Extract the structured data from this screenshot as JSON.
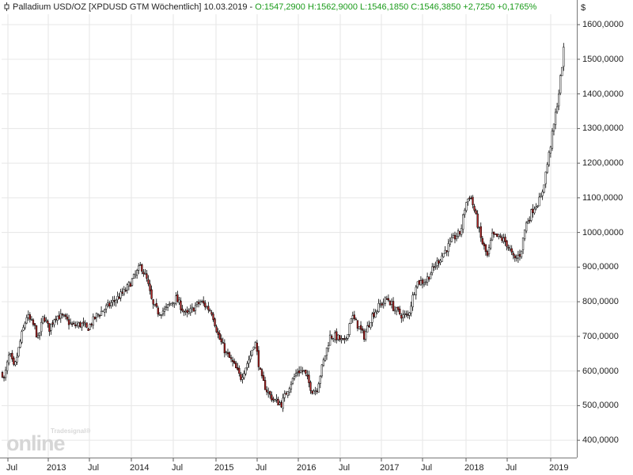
{
  "header": {
    "symbol_text": "Palladium USD/OZ [XPDUSD GTM  Wöchentlich] 10.03.2019 -",
    "ohlc_text": "O:1547,2900 H:1562,9000 L:1546,1850 C:1546,3850 +2,7250 +0,1765%"
  },
  "colors": {
    "up_candle": "#ffffff",
    "down_candle": "#b22222",
    "wick": "#000000",
    "grid": "#e6e6e6",
    "ohlc_text": "#1a9b1a"
  },
  "icons": {
    "header_icon": "candlestick-icon"
  },
  "logo": {
    "small": "Tradesignal®",
    "main": "online"
  },
  "chart_data": {
    "type": "candlestick",
    "currency_label": "$",
    "ylim": [
      350,
      1630
    ],
    "y_ticks": [
      "400,0000",
      "500,0000",
      "600,0000",
      "700,0000",
      "800,0000",
      "900,0000",
      "1000,0000",
      "1100,0000",
      "1200,0000",
      "1300,0000",
      "1400,0000",
      "1500,0000",
      "1600,0000"
    ],
    "x_ticks": [
      "Jul",
      "2013",
      "Jul",
      "2014",
      "Jul",
      "2015",
      "Jul",
      "2016",
      "Jul",
      "2017",
      "Jul",
      "2018",
      "Jul",
      "2019"
    ],
    "x_range": [
      "2012-06",
      "2019-03"
    ],
    "grid": true,
    "anchor_points": [
      [
        0,
        620
      ],
      [
        5,
        575
      ],
      [
        12,
        650
      ],
      [
        18,
        605
      ],
      [
        27,
        700
      ],
      [
        34,
        760
      ],
      [
        44,
        725
      ],
      [
        48,
        690
      ],
      [
        55,
        760
      ],
      [
        62,
        720
      ],
      [
        70,
        760
      ],
      [
        80,
        755
      ],
      [
        92,
        730
      ],
      [
        104,
        735
      ],
      [
        110,
        720
      ],
      [
        122,
        760
      ],
      [
        138,
        790
      ],
      [
        158,
        830
      ],
      [
        172,
        880
      ],
      [
        178,
        905
      ],
      [
        186,
        860
      ],
      [
        193,
        790
      ],
      [
        200,
        770
      ],
      [
        208,
        775
      ],
      [
        222,
        810
      ],
      [
        236,
        760
      ],
      [
        248,
        790
      ],
      [
        254,
        800
      ],
      [
        268,
        770
      ],
      [
        276,
        700
      ],
      [
        286,
        650
      ],
      [
        295,
        620
      ],
      [
        304,
        580
      ],
      [
        316,
        640
      ],
      [
        322,
        690
      ],
      [
        330,
        580
      ],
      [
        338,
        540
      ],
      [
        346,
        515
      ],
      [
        356,
        505
      ],
      [
        364,
        550
      ],
      [
        376,
        600
      ],
      [
        384,
        600
      ],
      [
        394,
        545
      ],
      [
        400,
        545
      ],
      [
        408,
        620
      ],
      [
        417,
        700
      ],
      [
        424,
        700
      ],
      [
        436,
        680
      ],
      [
        444,
        760
      ],
      [
        450,
        740
      ],
      [
        460,
        700
      ],
      [
        470,
        760
      ],
      [
        480,
        790
      ],
      [
        490,
        810
      ],
      [
        498,
        780
      ],
      [
        508,
        760
      ],
      [
        516,
        760
      ],
      [
        526,
        855
      ],
      [
        538,
        860
      ],
      [
        550,
        905
      ],
      [
        562,
        945
      ],
      [
        574,
        985
      ],
      [
        582,
        1000
      ],
      [
        588,
        1080
      ],
      [
        594,
        1110
      ],
      [
        600,
        1060
      ],
      [
        608,
        980
      ],
      [
        616,
        930
      ],
      [
        622,
        990
      ],
      [
        632,
        985
      ],
      [
        640,
        970
      ],
      [
        650,
        920
      ],
      [
        658,
        940
      ],
      [
        664,
        1020
      ],
      [
        674,
        1070
      ],
      [
        684,
        1100
      ],
      [
        692,
        1200
      ],
      [
        700,
        1310
      ],
      [
        706,
        1400
      ],
      [
        712,
        1520
      ],
      [
        714,
        1550
      ]
    ]
  }
}
